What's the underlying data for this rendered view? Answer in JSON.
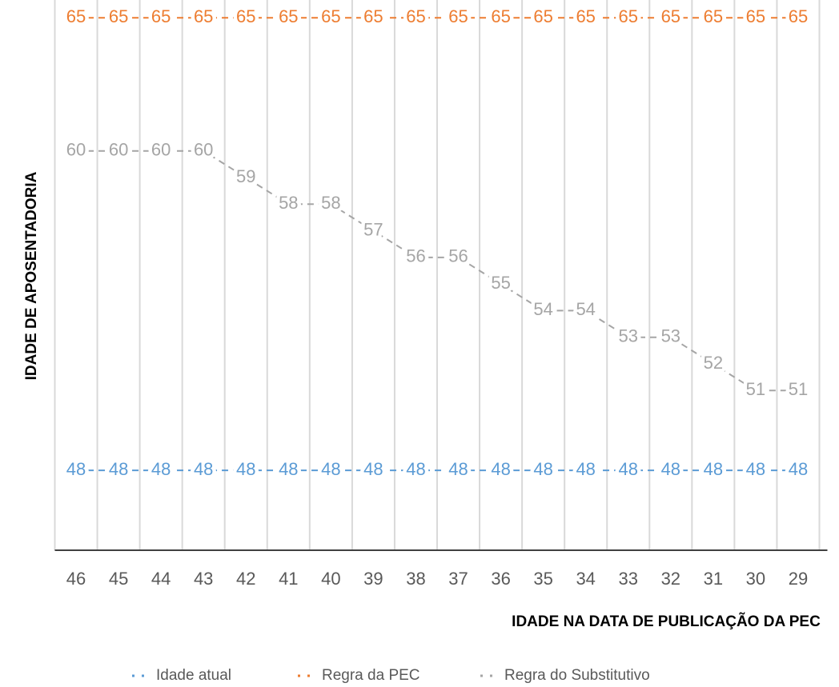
{
  "chart_data": {
    "type": "line",
    "x_label": "IDADE NA DATA DE PUBLICAÇÃO DA PEC",
    "y_label": "IDADE DE APOSENTADORIA",
    "categories": [
      "46",
      "45",
      "44",
      "43",
      "42",
      "41",
      "40",
      "39",
      "38",
      "37",
      "36",
      "35",
      "34",
      "33",
      "32",
      "31",
      "30",
      "29"
    ],
    "series": [
      {
        "name": "Idade atual",
        "color": "#5b9bd5",
        "values": [
          48,
          48,
          48,
          48,
          48,
          48,
          48,
          48,
          48,
          48,
          48,
          48,
          48,
          48,
          48,
          48,
          48,
          48
        ]
      },
      {
        "name": "Regra da PEC",
        "color": "#ed7d31",
        "values": [
          65,
          65,
          65,
          65,
          65,
          65,
          65,
          65,
          65,
          65,
          65,
          65,
          65,
          65,
          65,
          65,
          65,
          65
        ]
      },
      {
        "name": "Regra do Substitutivo",
        "color": "#a5a5a5",
        "values": [
          60,
          60,
          60,
          60,
          59,
          58,
          58,
          57,
          56,
          56,
          55,
          54,
          54,
          53,
          53,
          52,
          51,
          51
        ]
      }
    ],
    "ylim": [
      45,
      66
    ],
    "grid": true,
    "legend": "bottom"
  }
}
